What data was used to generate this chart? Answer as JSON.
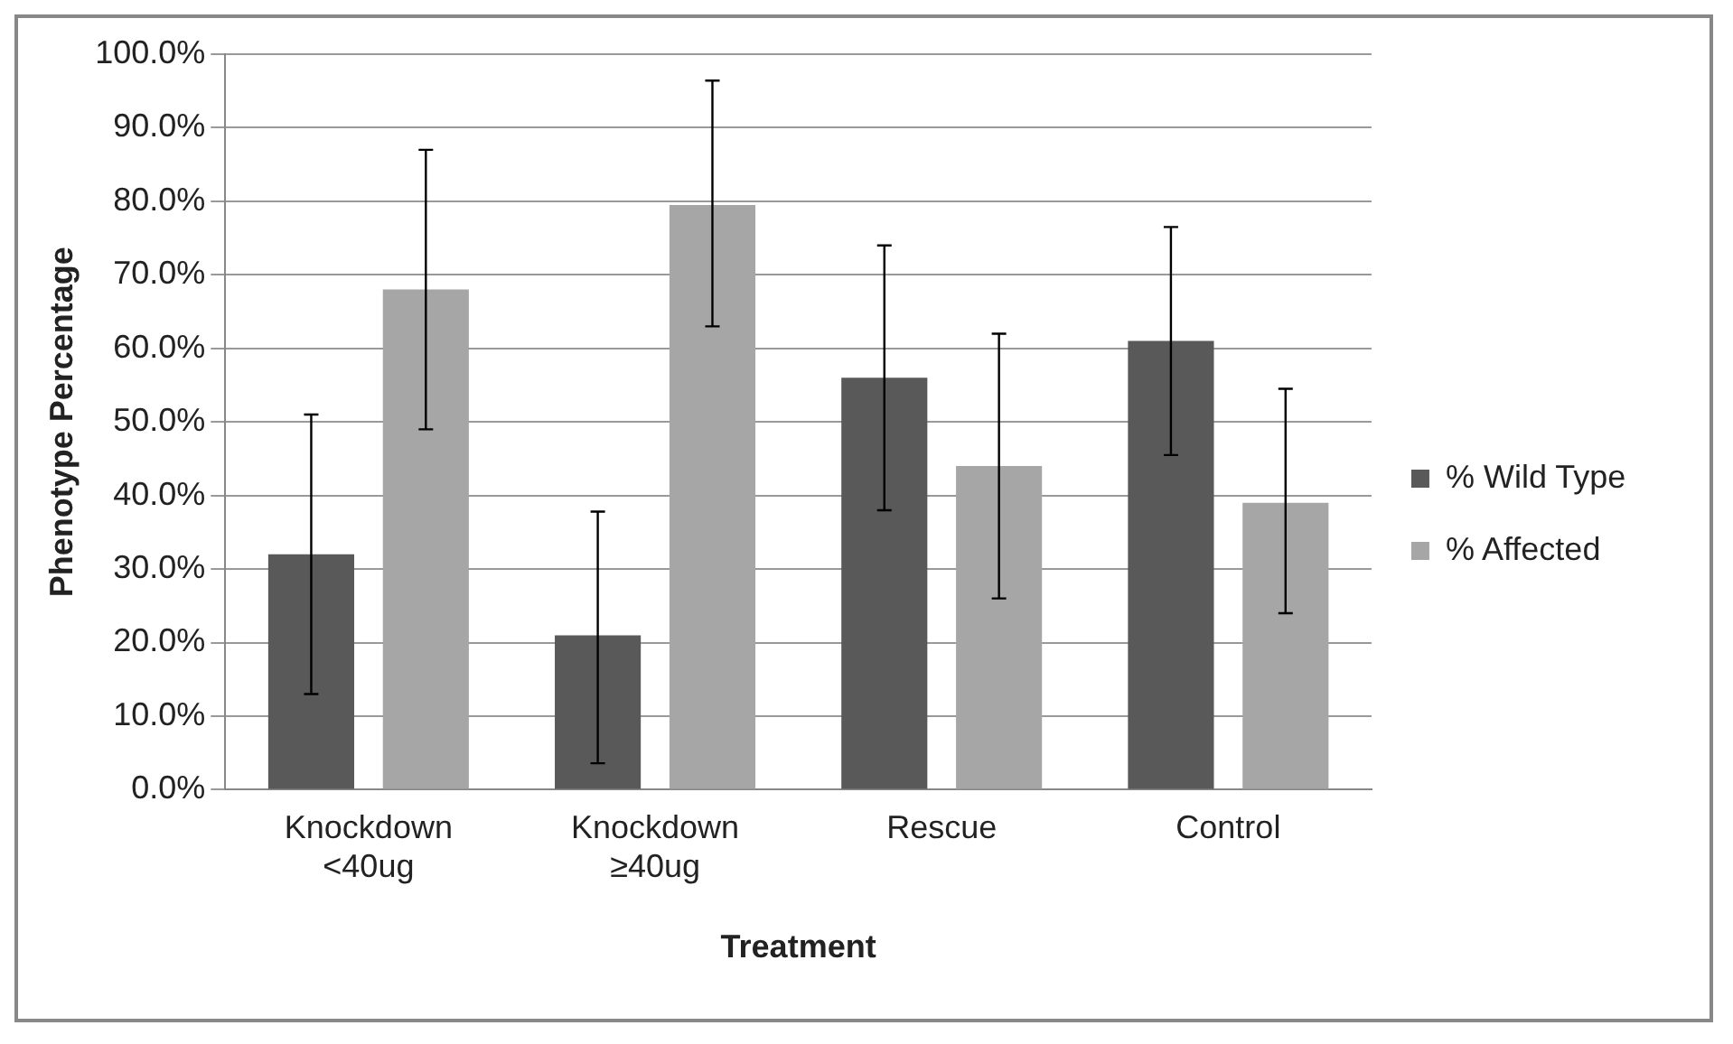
{
  "chart_data": {
    "type": "bar",
    "xlabel": "Treatment",
    "ylabel": "Phenotype Percentage",
    "categories": [
      "Knockdown <40ug",
      "Knockdown ≥40ug",
      "Rescue",
      "Control"
    ],
    "series": [
      {
        "name": "% Wild Type",
        "color": "#595959",
        "values": [
          32,
          21,
          56,
          61
        ],
        "errors": [
          [
            13,
            51
          ],
          [
            3.6,
            37.8
          ],
          [
            38,
            74
          ],
          [
            45.5,
            76.5
          ]
        ]
      },
      {
        "name": "% Affected",
        "color": "#a6a6a6",
        "values": [
          68,
          79.5,
          44,
          39
        ],
        "errors": [
          [
            49,
            87
          ],
          [
            63,
            96.4
          ],
          [
            26,
            62
          ],
          [
            24,
            54.5
          ]
        ]
      }
    ],
    "ylim": [
      0,
      100
    ],
    "yticks": [
      {
        "value": 0,
        "label": "0.0%"
      },
      {
        "value": 10,
        "label": "10.0%"
      },
      {
        "value": 20,
        "label": "20.0%"
      },
      {
        "value": 30,
        "label": "30.0%"
      },
      {
        "value": 40,
        "label": "40.0%"
      },
      {
        "value": 50,
        "label": "50.0%"
      },
      {
        "value": 60,
        "label": "60.0%"
      },
      {
        "value": 70,
        "label": "70.0%"
      },
      {
        "value": 80,
        "label": "80.0%"
      },
      {
        "value": 90,
        "label": "90.0%"
      },
      {
        "value": 100,
        "label": "100.0%"
      }
    ],
    "grid": "y",
    "legend": "right"
  }
}
